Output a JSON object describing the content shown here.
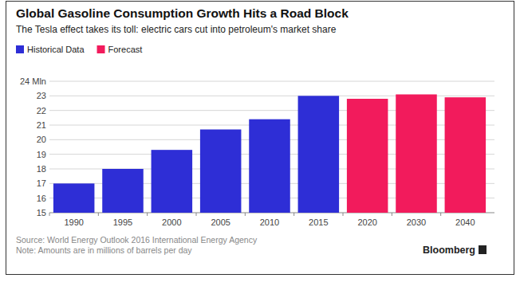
{
  "chart_data": {
    "type": "bar",
    "title": "Global Gasoline Consumption Growth Hits a Road Block",
    "subtitle": "The Tesla effect takes its toll: electric cars cut into petroleum's market share",
    "categories": [
      "1990",
      "1995",
      "2000",
      "2005",
      "2010",
      "2015",
      "2020",
      "2030",
      "2040"
    ],
    "series": [
      {
        "name": "Historical Data",
        "color": "#2e2ed6",
        "values": [
          17.0,
          18.0,
          19.3,
          20.7,
          21.4,
          23.0,
          null,
          null,
          null
        ]
      },
      {
        "name": "Forecast",
        "color": "#f21b5c",
        "values": [
          null,
          null,
          null,
          null,
          null,
          null,
          22.8,
          23.1,
          22.9
        ]
      }
    ],
    "ylim": [
      15,
      24
    ],
    "yticks": [
      15,
      16,
      17,
      18,
      19,
      20,
      21,
      22,
      23,
      {
        "value": 24,
        "label": "24 Mln"
      }
    ],
    "grid": true,
    "legend": "top-left",
    "source": "Source: World Energy Outlook 2016 International Energy Agency",
    "note": "Note: Amounts are in millions of barrels per day",
    "brand": "Bloomberg"
  }
}
